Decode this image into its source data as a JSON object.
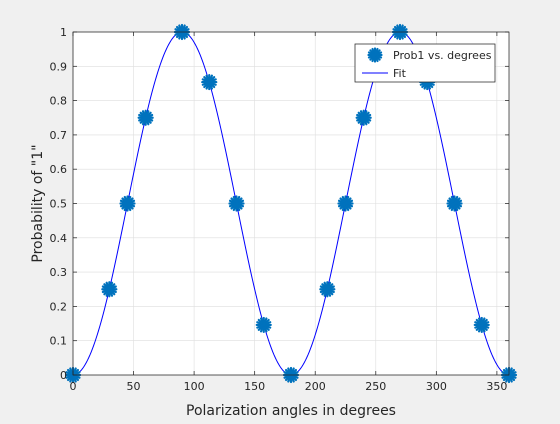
{
  "chart_data": {
    "type": "scatter",
    "xlabel": "Polarization angles in degrees",
    "ylabel": "Probability of \"1\"",
    "xlim": [
      0,
      360
    ],
    "ylim": [
      0,
      1
    ],
    "x_ticks": [
      0,
      50,
      100,
      150,
      200,
      250,
      300,
      350
    ],
    "y_ticks": [
      0,
      0.1,
      0.2,
      0.3,
      0.4,
      0.5,
      0.6,
      0.7,
      0.8,
      0.9,
      1
    ],
    "x_tick_labels": [
      "0",
      "50",
      "100",
      "150",
      "200",
      "250",
      "300",
      "350"
    ],
    "y_tick_labels": [
      "0",
      "0.1",
      "0.2",
      "0.3",
      "0.4",
      "0.5",
      "0.6",
      "0.7",
      "0.8",
      "0.9",
      "1"
    ],
    "grid": true,
    "legend_position": "top-right",
    "series": [
      {
        "name": "Prob1 vs. degrees",
        "kind": "markers",
        "marker": "asterisk",
        "color": "#0072BD",
        "x": [
          0,
          30,
          45,
          60,
          90,
          112.5,
          135,
          157.5,
          180,
          210,
          225,
          240,
          270,
          292.5,
          315,
          337.5,
          360
        ],
        "y": [
          0,
          0.25,
          0.5,
          0.75,
          1,
          0.854,
          0.5,
          0.146,
          0,
          0.25,
          0.5,
          0.75,
          1,
          0.854,
          0.5,
          0.146,
          0
        ]
      },
      {
        "name": "Fit",
        "kind": "line",
        "color": "#0000FF",
        "function": "sin^2(x)"
      }
    ]
  }
}
